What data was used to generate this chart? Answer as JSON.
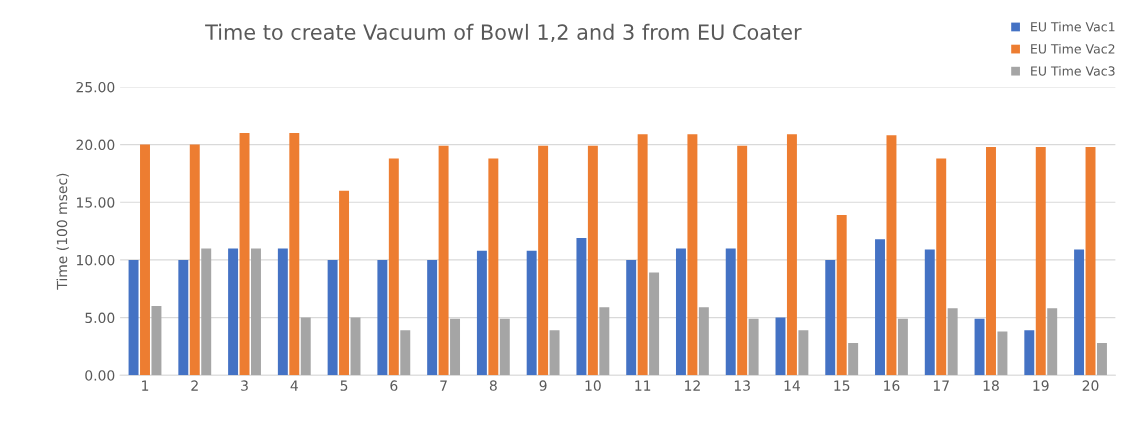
{
  "chart_data": {
    "type": "bar",
    "title": "Time to create Vacuum of Bowl 1,2 and 3 from EU Coater",
    "ylabel": "Time (100 msec)",
    "categories": [
      "1",
      "2",
      "3",
      "4",
      "5",
      "6",
      "7",
      "8",
      "9",
      "10",
      "11",
      "12",
      "13",
      "14",
      "15",
      "16",
      "17",
      "18",
      "19",
      "20"
    ],
    "series": [
      {
        "name": "EU Time Vac1",
        "color": "#4472c4",
        "values": [
          10,
          10,
          11,
          11,
          10,
          10,
          10,
          10.8,
          10.8,
          11.9,
          10,
          11,
          11,
          5,
          10,
          11.8,
          10.9,
          4.9,
          3.9,
          10.9
        ]
      },
      {
        "name": "EU Time Vac2",
        "color": "#ed7d31",
        "values": [
          20,
          20,
          21,
          21,
          16,
          18.8,
          19.9,
          18.8,
          19.9,
          19.9,
          20.9,
          20.9,
          19.9,
          20.9,
          13.9,
          20.8,
          18.8,
          19.8,
          19.8,
          19.8
        ]
      },
      {
        "name": "EU Time Vac3",
        "color": "#a5a5a5",
        "values": [
          6,
          11,
          11,
          5,
          5,
          3.9,
          4.9,
          4.9,
          3.9,
          5.9,
          8.9,
          5.9,
          4.9,
          3.9,
          2.8,
          4.9,
          5.8,
          3.8,
          5.8,
          2.8
        ]
      }
    ],
    "ylim": [
      0,
      25
    ],
    "yticks": [
      {
        "value": 0,
        "label": "0.00"
      },
      {
        "value": 5,
        "label": "5.00"
      },
      {
        "value": 10,
        "label": "10.00"
      },
      {
        "value": 15,
        "label": "15.00"
      },
      {
        "value": 20,
        "label": "20.00"
      },
      {
        "value": 25,
        "label": "25.00"
      }
    ],
    "grid": "y",
    "legend": "top right"
  }
}
